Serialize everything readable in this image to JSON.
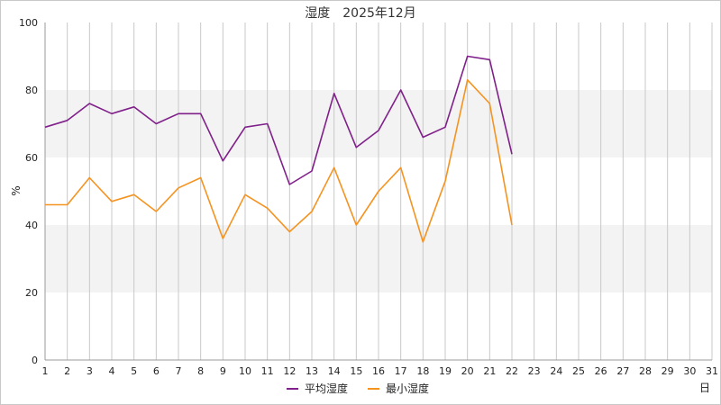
{
  "chart_data": {
    "type": "line",
    "title": "湿度　2025年12月",
    "xlabel": "日",
    "ylabel": "%",
    "xlim": [
      1,
      31
    ],
    "ylim": [
      0,
      100
    ],
    "x_ticks": [
      "1",
      "2",
      "3",
      "4",
      "5",
      "6",
      "7",
      "8",
      "9",
      "10",
      "11",
      "12",
      "13",
      "14",
      "15",
      "16",
      "17",
      "18",
      "19",
      "20",
      "21",
      "22",
      "23",
      "24",
      "25",
      "26",
      "27",
      "28",
      "29",
      "30",
      "31"
    ],
    "y_ticks": [
      "0",
      "20",
      "40",
      "60",
      "80",
      "100"
    ],
    "grid": true,
    "bands": [
      [
        20,
        40
      ],
      [
        60,
        80
      ]
    ],
    "legend_position": "bottom",
    "series": [
      {
        "name": "平均湿度",
        "color": "#80208a",
        "x": [
          1,
          2,
          3,
          4,
          5,
          6,
          7,
          8,
          9,
          10,
          11,
          12,
          13,
          14,
          15,
          16,
          17,
          18,
          19,
          20,
          21,
          22
        ],
        "values": [
          69,
          71,
          76,
          73,
          75,
          70,
          73,
          73,
          59,
          69,
          70,
          52,
          56,
          79,
          63,
          68,
          80,
          66,
          69,
          90,
          89,
          61
        ]
      },
      {
        "name": "最小湿度",
        "color": "#f59320",
        "x": [
          1,
          2,
          3,
          4,
          5,
          6,
          7,
          8,
          9,
          10,
          11,
          12,
          13,
          14,
          15,
          16,
          17,
          18,
          19,
          20,
          21,
          22
        ],
        "values": [
          46,
          46,
          54,
          47,
          49,
          44,
          51,
          54,
          36,
          49,
          45,
          38,
          44,
          57,
          40,
          50,
          57,
          35,
          53,
          83,
          76,
          40
        ]
      }
    ]
  }
}
